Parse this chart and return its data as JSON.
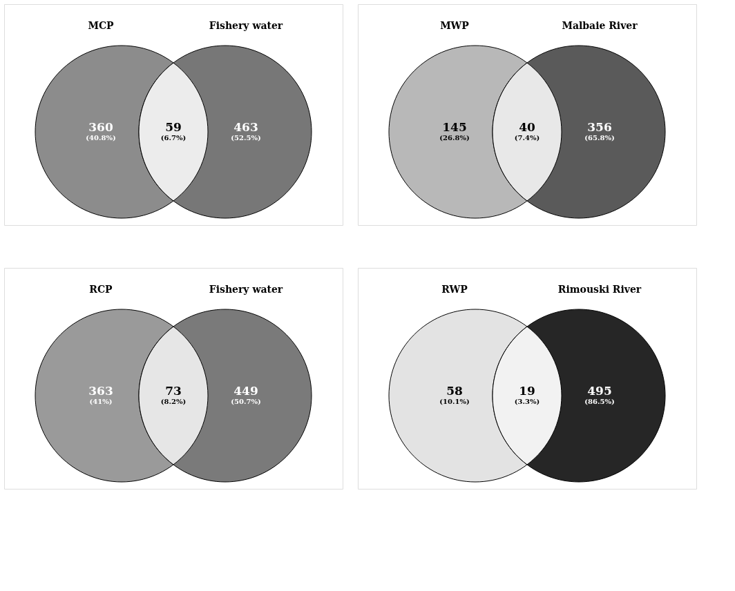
{
  "chart_data": [
    {
      "type": "other",
      "categories": [
        "MCP",
        null,
        "Fishery water"
      ],
      "values": [
        360,
        59,
        463
      ],
      "data_labels": true,
      "annotations": [
        "(40.8%)",
        "(6.7%)",
        "(52.5%)"
      ],
      "colors": [
        "#8c8c8c",
        "#ececec",
        "#777777"
      ]
    },
    {
      "type": "other",
      "categories": [
        "MWP",
        null,
        "Malbaie River"
      ],
      "values": [
        145,
        40,
        356
      ],
      "data_labels": true,
      "annotations": [
        "(26.8%)",
        "(7.4%)",
        "(65.8%)"
      ],
      "colors": [
        "#b8b8b8",
        "#e8e8e8",
        "#5a5a5a"
      ]
    },
    {
      "type": "other",
      "categories": [
        "RCP",
        null,
        "Fishery water"
      ],
      "values": [
        363,
        73,
        449
      ],
      "data_labels": true,
      "annotations": [
        "(41%)",
        "(8.2%)",
        "(50.7%)"
      ],
      "colors": [
        "#9a9a9a",
        "#e6e6e6",
        "#7a7a7a"
      ]
    },
    {
      "type": "other",
      "categories": [
        "RWP",
        null,
        "Rimouski River"
      ],
      "values": [
        58,
        19,
        495
      ],
      "data_labels": true,
      "annotations": [
        "(10.1%)",
        "(3.3%)",
        "(86.5%)"
      ],
      "colors": [
        "#e3e3e3",
        "#f2f2f2",
        "#262626"
      ]
    }
  ]
}
